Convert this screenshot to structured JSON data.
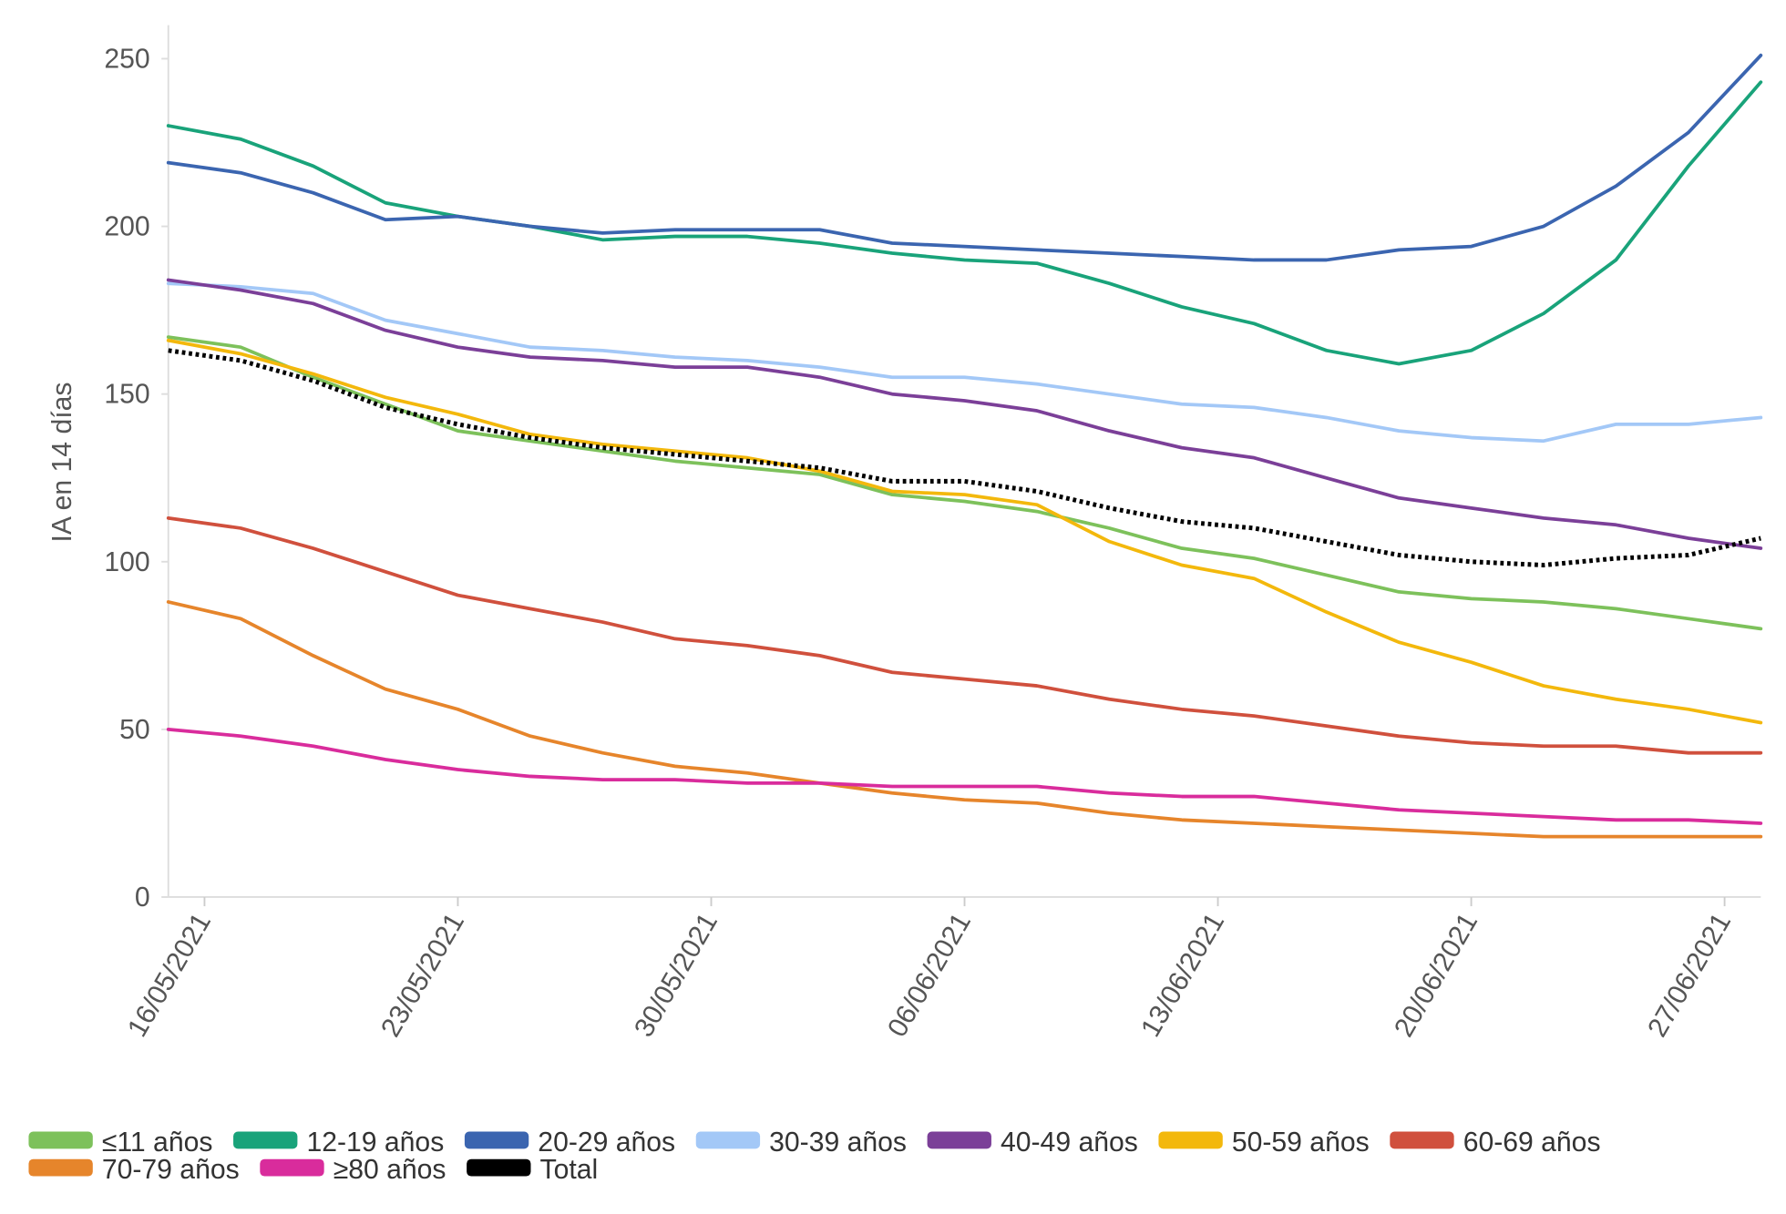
{
  "chart_data": {
    "type": "line",
    "y_label": "IA en 14 días",
    "x": [
      "15/05/2021",
      "17/05/2021",
      "19/05/2021",
      "21/05/2021",
      "23/05/2021",
      "25/05/2021",
      "27/05/2021",
      "29/05/2021",
      "31/05/2021",
      "02/06/2021",
      "04/06/2021",
      "06/06/2021",
      "08/06/2021",
      "10/06/2021",
      "12/06/2021",
      "14/06/2021",
      "16/06/2021",
      "18/06/2021",
      "20/06/2021",
      "22/06/2021",
      "24/06/2021",
      "26/06/2021",
      "28/06/2021"
    ],
    "xlim": [
      "15/05/2021",
      "28/06/2021"
    ],
    "xticks": [
      "16/05/2021",
      "23/05/2021",
      "30/05/2021",
      "06/06/2021",
      "13/06/2021",
      "20/06/2021",
      "27/06/2021"
    ],
    "ylim": [
      0,
      260
    ],
    "yticks": [
      0,
      50,
      100,
      150,
      200,
      250
    ],
    "grid": false,
    "legend": "bottom",
    "series": [
      {
        "name": "≤11 años",
        "color": "#7dc15b",
        "values": [
          167,
          164,
          155,
          147,
          139,
          136,
          133,
          130,
          128,
          126,
          120,
          118,
          115,
          110,
          104,
          101,
          96,
          91,
          89,
          88,
          86,
          83,
          80
        ]
      },
      {
        "name": "12-19 años",
        "color": "#19a37a",
        "values": [
          230,
          226,
          218,
          207,
          203,
          200,
          196,
          197,
          197,
          195,
          192,
          190,
          189,
          183,
          176,
          171,
          163,
          159,
          163,
          174,
          190,
          218,
          243
        ]
      },
      {
        "name": "20-29 años",
        "color": "#3b65b0",
        "values": [
          219,
          216,
          210,
          202,
          203,
          200,
          198,
          199,
          199,
          199,
          195,
          194,
          193,
          192,
          191,
          190,
          190,
          193,
          194,
          200,
          212,
          228,
          251
        ]
      },
      {
        "name": "30-39 años",
        "color": "#a3c8f7",
        "values": [
          183,
          182,
          180,
          172,
          168,
          164,
          163,
          161,
          160,
          158,
          155,
          155,
          153,
          150,
          147,
          146,
          143,
          139,
          137,
          136,
          141,
          141,
          143
        ]
      },
      {
        "name": "40-49 años",
        "color": "#7b3f98",
        "values": [
          184,
          181,
          177,
          169,
          164,
          161,
          160,
          158,
          158,
          155,
          150,
          148,
          145,
          139,
          134,
          131,
          125,
          119,
          116,
          113,
          111,
          107,
          104
        ]
      },
      {
        "name": "50-59 años",
        "color": "#f3b80c",
        "values": [
          166,
          162,
          156,
          149,
          144,
          138,
          135,
          133,
          131,
          127,
          121,
          120,
          117,
          106,
          99,
          95,
          85,
          76,
          70,
          63,
          59,
          56,
          52
        ]
      },
      {
        "name": "60-69 años",
        "color": "#d0503d",
        "values": [
          113,
          110,
          104,
          97,
          90,
          86,
          82,
          77,
          75,
          72,
          67,
          65,
          63,
          59,
          56,
          54,
          51,
          48,
          46,
          45,
          45,
          43,
          43
        ]
      },
      {
        "name": "70-79 años",
        "color": "#e6852b",
        "values": [
          88,
          83,
          72,
          62,
          56,
          48,
          43,
          39,
          37,
          34,
          31,
          29,
          28,
          25,
          23,
          22,
          21,
          20,
          19,
          18,
          18,
          18,
          18
        ]
      },
      {
        "name": "≥80 años",
        "color": "#d92c9c",
        "values": [
          50,
          48,
          45,
          41,
          38,
          36,
          35,
          35,
          34,
          34,
          33,
          33,
          33,
          31,
          30,
          30,
          28,
          26,
          25,
          24,
          23,
          23,
          22
        ]
      },
      {
        "name": "Total",
        "color": "#000000",
        "dashed": true,
        "values": [
          163,
          160,
          154,
          146,
          141,
          137,
          134,
          132,
          130,
          128,
          124,
          124,
          121,
          116,
          112,
          110,
          106,
          102,
          100,
          99,
          101,
          102,
          107
        ]
      }
    ]
  }
}
